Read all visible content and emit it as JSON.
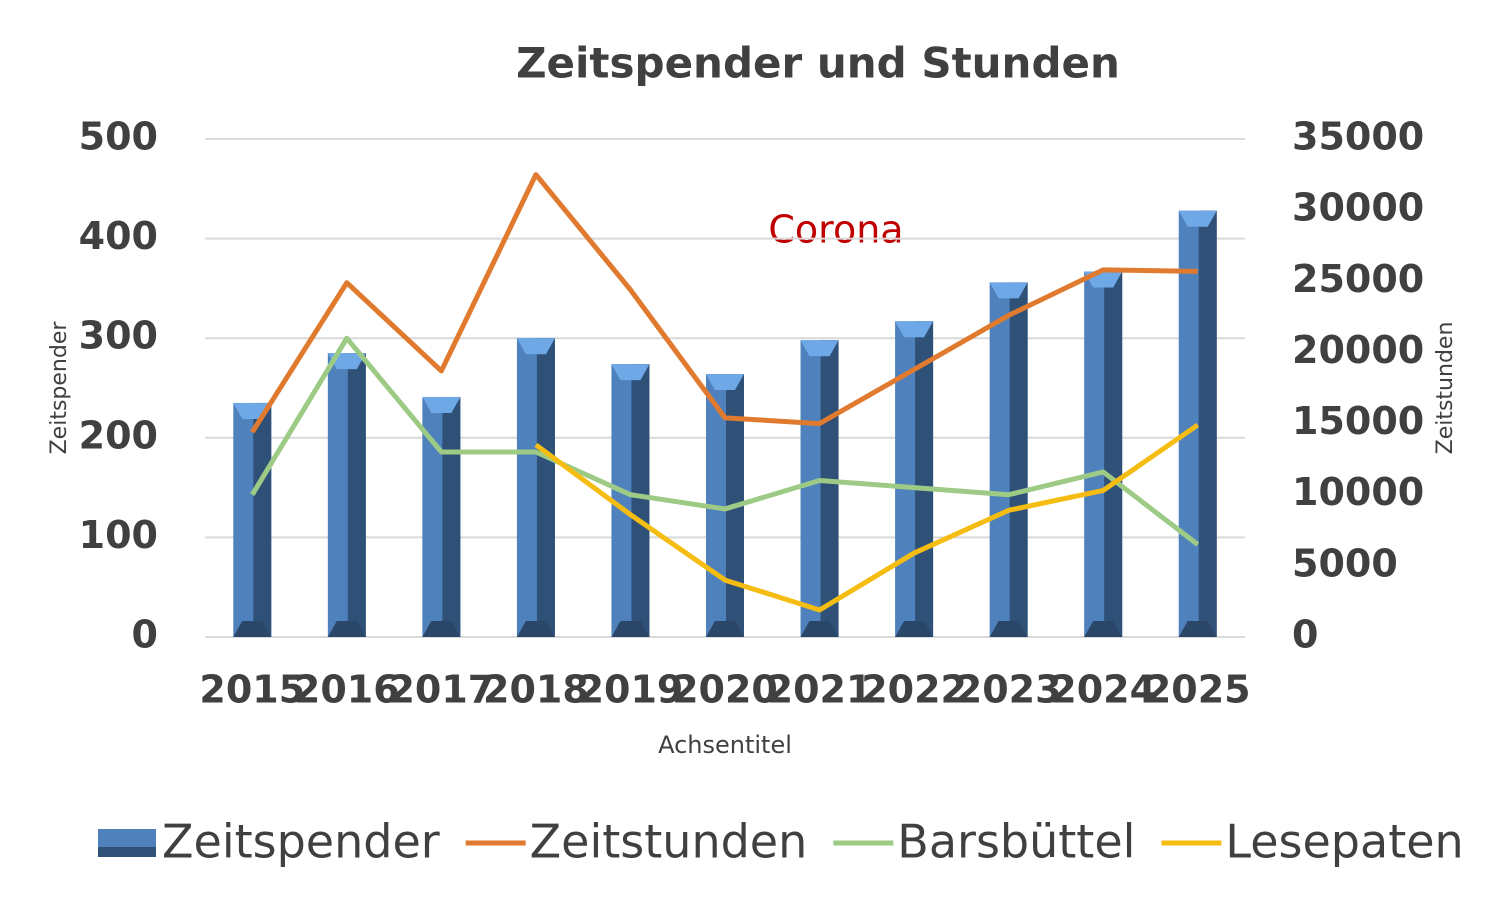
{
  "chart_data": {
    "type": "bar-line",
    "title": "Zeitspender und  Stunden",
    "x_label": "Achsentitel",
    "y_label": "Zeitspender",
    "y2_label": "Zeitstunden",
    "annotation": "Corona",
    "categories": [
      "2015",
      "2016",
      "2017",
      "2018",
      "2019",
      "2020",
      "2021",
      "2022",
      "2023",
      "2024",
      "2025"
    ],
    "series": [
      {
        "name": "Zeitspender",
        "type": "bar",
        "color": "#4f81bd",
        "axis": "y",
        "values": [
          235,
          285,
          241,
          300,
          274,
          264,
          298,
          317,
          356,
          367,
          428
        ]
      },
      {
        "name": "Zeitstunden",
        "type": "line",
        "color": "#e07a2e",
        "axis": "y2",
        "values": [
          14400,
          24900,
          18700,
          32500,
          24400,
          15400,
          15000,
          18800,
          22600,
          25800,
          25700
        ]
      },
      {
        "name": "Barsbüttel",
        "type": "line",
        "color": "#9dcb86",
        "axis": "y2",
        "values": [
          10000,
          21000,
          13000,
          13000,
          10000,
          9000,
          11000,
          10500,
          10000,
          11600,
          6500
        ]
      },
      {
        "name": "Lesepaten",
        "type": "line",
        "color": "#f5bc12",
        "axis": "y2",
        "values": [
          null,
          null,
          null,
          13500,
          8600,
          4000,
          1900,
          5900,
          8900,
          10300,
          14900
        ]
      }
    ],
    "ylim": [
      0,
      500
    ],
    "yticks": [
      0,
      100,
      200,
      300,
      400,
      500
    ],
    "y2lim": [
      0,
      35000
    ],
    "y2ticks": [
      0,
      5000,
      10000,
      15000,
      20000,
      25000,
      30000,
      35000
    ],
    "grid": true,
    "legend": "bottom"
  }
}
